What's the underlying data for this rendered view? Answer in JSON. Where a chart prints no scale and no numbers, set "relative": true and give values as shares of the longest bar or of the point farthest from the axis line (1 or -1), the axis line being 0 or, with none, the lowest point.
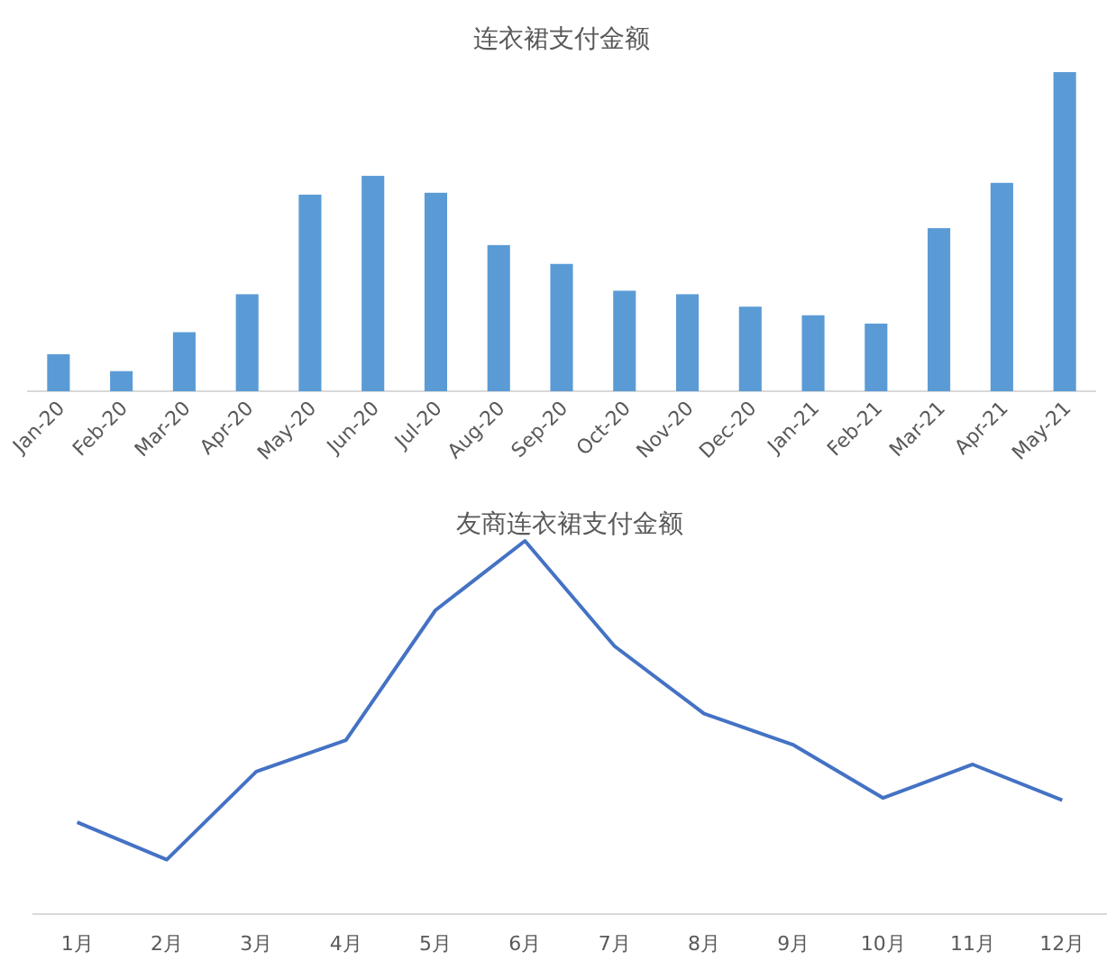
{
  "chart_data": [
    {
      "type": "bar",
      "title": "连衣裙支付金额",
      "relative": true,
      "grid": false,
      "categories": [
        "Jan-20",
        "Feb-20",
        "Mar-20",
        "Apr-20",
        "May-20",
        "Jun-20",
        "Jul-20",
        "Aug-20",
        "Sep-20",
        "Oct-20",
        "Nov-20",
        "Dec-20",
        "Jan-21",
        "Feb-21",
        "Mar-21",
        "Apr-21",
        "May-21"
      ],
      "series": [
        {
          "color": "#5b9bd5",
          "values": [
            0.116,
            0.063,
            0.185,
            0.304,
            0.616,
            0.675,
            0.622,
            0.458,
            0.399,
            0.315,
            0.304,
            0.265,
            0.238,
            0.212,
            0.511,
            0.653,
            1
          ]
        }
      ]
    },
    {
      "type": "line",
      "title": "友商连衣裙支付金额",
      "relative": true,
      "grid": false,
      "marker": "none",
      "line_style": "solid",
      "categories": [
        "1月",
        "2月",
        "3月",
        "4月",
        "5月",
        "6月",
        "7月",
        "8月",
        "9月",
        "10月",
        "11月",
        "12月"
      ],
      "series": [
        {
          "color": "#4472c4",
          "values": [
            0.246,
            0.146,
            0.382,
            0.466,
            0.814,
            1,
            0.718,
            0.537,
            0.453,
            0.311,
            0.401,
            0.305
          ]
        }
      ]
    }
  ]
}
